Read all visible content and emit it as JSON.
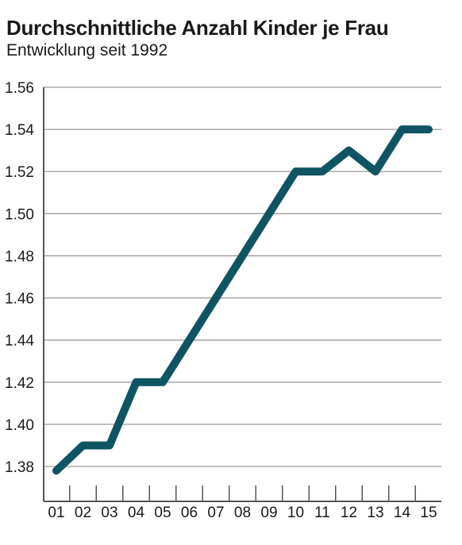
{
  "chart_data": {
    "type": "line",
    "title": "Durchschnittliche Anzahl Kinder je Frau",
    "subtitle": "Entwicklung seit 1992",
    "categories": [
      "01",
      "02",
      "03",
      "04",
      "05",
      "06",
      "07",
      "08",
      "09",
      "10",
      "11",
      "12",
      "13",
      "14",
      "15"
    ],
    "series": [
      {
        "values": [
          1.378,
          1.39,
          1.39,
          1.42,
          1.42,
          1.44,
          1.46,
          1.48,
          1.5,
          1.52,
          1.52,
          1.53,
          1.52,
          1.54,
          1.54
        ]
      }
    ],
    "yticks": [
      "1.56",
      "1.54",
      "1.52",
      "1.50",
      "1.48",
      "1.46",
      "1.44",
      "1.42",
      "1.40",
      "1.38"
    ],
    "ylim": [
      1.38,
      1.56
    ],
    "grid": true,
    "colors": {
      "line": "#0f5462",
      "grid": "#9a9a9a",
      "axis": "#555555"
    }
  }
}
